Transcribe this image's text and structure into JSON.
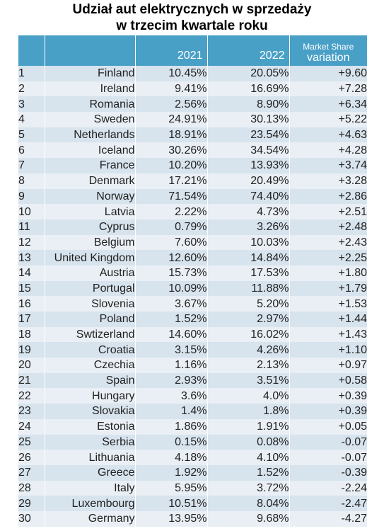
{
  "title": {
    "line1": "Udział aut elektrycznych w sprzedaży",
    "line2": "w trzecim kwartale roku"
  },
  "headers": {
    "rank": "",
    "country": "",
    "y2021": "2021",
    "y2022": "2022",
    "variation_line1": "Market Share",
    "variation_line2": "variation"
  },
  "colors": {
    "header_bg": "#49a0c7",
    "row_odd": "#d7e3ed",
    "row_even": "#e9eff4"
  },
  "chart_data": {
    "type": "table",
    "title": "Udział aut elektrycznych w sprzedaży w trzecim kwartale roku",
    "columns": [
      "",
      "",
      "2021",
      "2022",
      "Market Share variation"
    ],
    "rows": [
      [
        "1",
        "Finland",
        "10.45%",
        "20.05%",
        "+9.60"
      ],
      [
        "2",
        "Ireland",
        "9.41%",
        "16.69%",
        "+7.28"
      ],
      [
        "3",
        "Romania",
        "2.56%",
        "8.90%",
        "+6.34"
      ],
      [
        "4",
        "Sweden",
        "24.91%",
        "30.13%",
        "+5.22"
      ],
      [
        "5",
        "Netherlands",
        "18.91%",
        "23.54%",
        "+4.63"
      ],
      [
        "6",
        "Iceland",
        "30.26%",
        "34.54%",
        "+4.28"
      ],
      [
        "7",
        "France",
        "10.20%",
        "13.93%",
        "+3.74"
      ],
      [
        "8",
        "Denmark",
        "17.21%",
        "20.49%",
        "+3.28"
      ],
      [
        "9",
        "Norway",
        "71.54%",
        "74.40%",
        "+2.86"
      ],
      [
        "10",
        "Latvia",
        "2.22%",
        "4.73%",
        "+2.51"
      ],
      [
        "11",
        "Cyprus",
        "0.79%",
        "3.26%",
        "+2.48"
      ],
      [
        "12",
        "Belgium",
        "7.60%",
        "10.03%",
        "+2.43"
      ],
      [
        "13",
        "United Kingdom",
        "12.60%",
        "14.84%",
        "+2.25"
      ],
      [
        "14",
        "Austria",
        "15.73%",
        "17.53%",
        "+1.80"
      ],
      [
        "15",
        "Portugal",
        "10.09%",
        "11.88%",
        "+1.79"
      ],
      [
        "16",
        "Slovenia",
        "3.67%",
        "5.20%",
        "+1.53"
      ],
      [
        "17",
        "Poland",
        "1.52%",
        "2.97%",
        "+1.44"
      ],
      [
        "18",
        "Swtizerland",
        "14.60%",
        "16.02%",
        "+1.43"
      ],
      [
        "19",
        "Croatia",
        "3.15%",
        "4.26%",
        "+1.10"
      ],
      [
        "20",
        "Czechia",
        "1.16%",
        "2.13%",
        "+0.97"
      ],
      [
        "21",
        "Spain",
        "2.93%",
        "3.51%",
        "+0.58"
      ],
      [
        "22",
        "Hungary",
        "3.6%",
        "4.0%",
        "+0.39"
      ],
      [
        "23",
        "Slovakia",
        "1.4%",
        "1.8%",
        "+0.39"
      ],
      [
        "24",
        "Estonia",
        "1.86%",
        "1.91%",
        "+0.05"
      ],
      [
        "25",
        "Serbia",
        "0.15%",
        "0.08%",
        "-0.07"
      ],
      [
        "26",
        "Lithuania",
        "4.18%",
        "4.10%",
        "-0.07"
      ],
      [
        "27",
        "Greece",
        "1.92%",
        "1.52%",
        "-0.39"
      ],
      [
        "28",
        "Italy",
        "5.95%",
        "3.72%",
        "-2.24"
      ],
      [
        "29",
        "Luxembourg",
        "10.51%",
        "8.04%",
        "-2.47"
      ],
      [
        "30",
        "Germany",
        "13.95%",
        "9.68%",
        "-4.27"
      ]
    ]
  }
}
